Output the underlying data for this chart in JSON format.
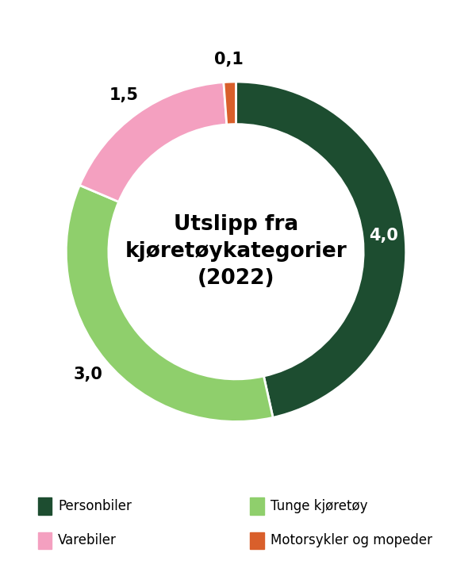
{
  "title": "Utslipp fra\nkjøretøykategorier\n(2022)",
  "categories": [
    "Personbiler",
    "Tunge kjøretøy",
    "Varebiler",
    "Motorsykler og mopeder"
  ],
  "values": [
    4.0,
    3.0,
    1.5,
    0.1
  ],
  "labels": [
    "4,0",
    "3,0",
    "1,5",
    "0,1"
  ],
  "label_colors": [
    "white",
    "black",
    "black",
    "black"
  ],
  "colors": [
    "#1d4d30",
    "#8fcf6c",
    "#f4a0c0",
    "#d95f2b"
  ],
  "legend_labels": [
    "Personbiler",
    "Tunge kjøretøy",
    "Varebiler",
    "Motorsykler og mopeder"
  ],
  "legend_colors": [
    "#1d4d30",
    "#8fcf6c",
    "#f4a0c0",
    "#d95f2b"
  ],
  "background_color": "#ffffff",
  "title_fontsize": 19,
  "label_fontsize": 15,
  "legend_fontsize": 12,
  "donut_width": 0.25,
  "start_angle": 90
}
